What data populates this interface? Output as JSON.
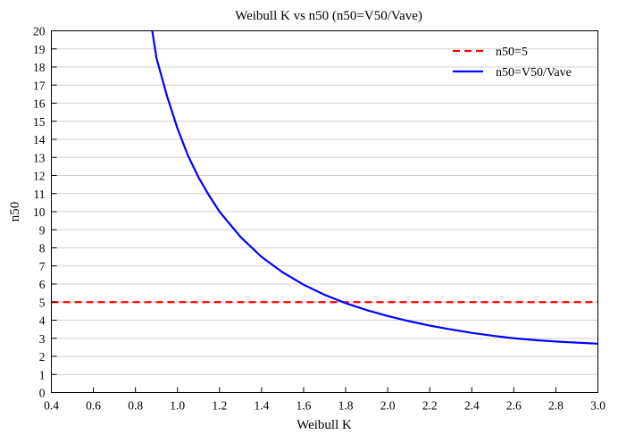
{
  "chart_data": {
    "type": "line",
    "title": "Weibull K vs n50 (n50=V50/Vave)",
    "xlabel": "Weibull K",
    "ylabel": "n50",
    "xlim": [
      0.4,
      3.0
    ],
    "ylim": [
      0,
      20
    ],
    "xticks": [
      "0.4",
      "0.6",
      "0.8",
      "1.0",
      "1.2",
      "1.4",
      "1.6",
      "1.8",
      "2.0",
      "2.2",
      "2.4",
      "2.6",
      "2.8",
      "3.0"
    ],
    "yticks": [
      "0",
      "1",
      "2",
      "3",
      "4",
      "5",
      "6",
      "7",
      "8",
      "9",
      "10",
      "11",
      "12",
      "13",
      "14",
      "15",
      "16",
      "17",
      "18",
      "19",
      "20"
    ],
    "grid": "horizontal",
    "legend_position": "top-right",
    "series": [
      {
        "name": "n50=5",
        "style": "dashed",
        "color": "#ff0000",
        "x": [
          0.4,
          3.0
        ],
        "y": [
          5,
          5
        ]
      },
      {
        "name": "n50=V50/Vave",
        "style": "solid",
        "color": "#0000ff",
        "x": [
          0.88,
          0.9,
          0.95,
          1.0,
          1.05,
          1.1,
          1.15,
          1.2,
          1.3,
          1.4,
          1.5,
          1.6,
          1.7,
          1.8,
          1.9,
          2.0,
          2.1,
          2.2,
          2.3,
          2.4,
          2.5,
          2.6,
          2.7,
          2.8,
          2.9,
          3.0
        ],
        "y": [
          20.0,
          18.5,
          16.4,
          14.6,
          13.1,
          11.9,
          10.9,
          10.0,
          8.6,
          7.5,
          6.65,
          5.96,
          5.4,
          4.94,
          4.56,
          4.23,
          3.95,
          3.7,
          3.49,
          3.3,
          3.14,
          3.0,
          2.9,
          2.82,
          2.76,
          2.7
        ]
      }
    ]
  }
}
